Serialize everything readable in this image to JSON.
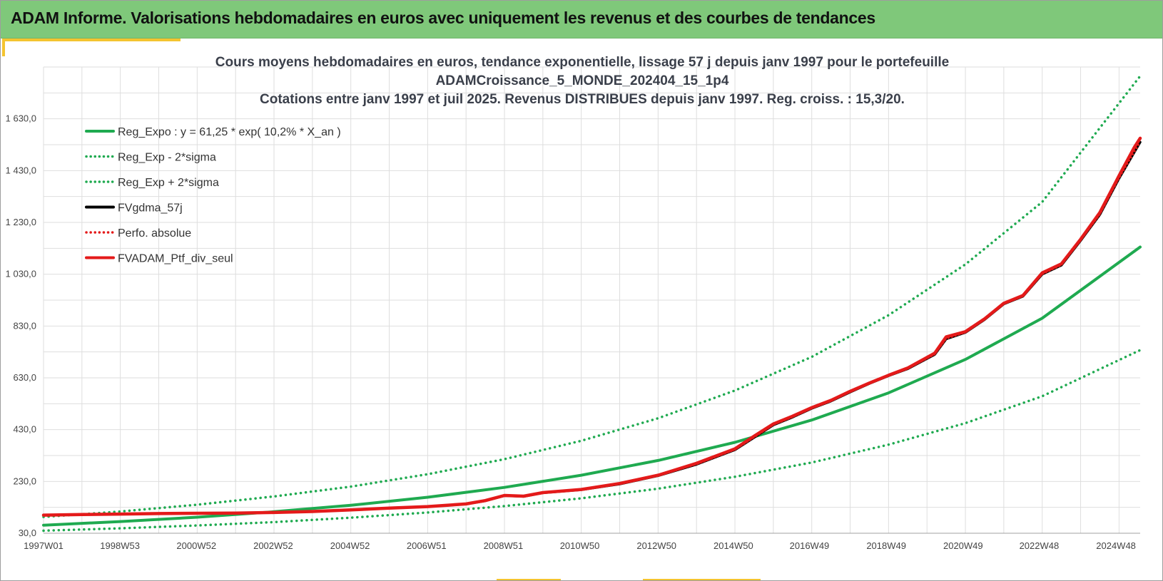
{
  "header": {
    "title": "ADAM Informe. Valorisations hebdomadaires en euros avec uniquement les revenus et des courbes de tendances"
  },
  "colors": {
    "banner": "#7fc87a",
    "accent": "#f4c430",
    "trend_green": "#1faa50",
    "black": "#000000",
    "red": "#e41a1a"
  },
  "chart_data": {
    "type": "line",
    "title_lines": [
      "Cours moyens hebdomadaires  en euros, tendance exponentielle, lissage 57 j depuis janv 1997 pour le portefeuille",
      "ADAMCroissance_5_MONDE_202404_15_1p4",
      "Cotations  entre janv 1997 et juil 2025. Revenus DISTRIBUES depuis janv 1997. Reg. croiss. : 15,3/20."
    ],
    "xlabel": "",
    "ylabel": "",
    "x_range": [
      1997.0,
      2025.55
    ],
    "ylim": [
      30,
      1830
    ],
    "y_ticks": [
      30,
      230,
      430,
      630,
      830,
      1030,
      1230,
      1430,
      1630
    ],
    "y_tick_labels": [
      "30,0",
      "230,0",
      "430,0",
      "630,0",
      "830,0",
      "1 030,0",
      "1 230,0",
      "1 430,0",
      "1 630,0"
    ],
    "x_tick_labels": [
      {
        "x": 1997.0,
        "label": "1997W01"
      },
      {
        "x": 1998.99,
        "label": "1998W53"
      },
      {
        "x": 2000.98,
        "label": "2000W52"
      },
      {
        "x": 2002.98,
        "label": "2002W52"
      },
      {
        "x": 2004.98,
        "label": "2004W52"
      },
      {
        "x": 2006.97,
        "label": "2006W51"
      },
      {
        "x": 2008.97,
        "label": "2008W51"
      },
      {
        "x": 2010.96,
        "label": "2010W50"
      },
      {
        "x": 2012.96,
        "label": "2012W50"
      },
      {
        "x": 2014.96,
        "label": "2014W50"
      },
      {
        "x": 2016.94,
        "label": "2016W49"
      },
      {
        "x": 2018.94,
        "label": "2018W49"
      },
      {
        "x": 2020.94,
        "label": "2020W49"
      },
      {
        "x": 2022.92,
        "label": "2022W48"
      },
      {
        "x": 2024.92,
        "label": "2024W48"
      }
    ],
    "grid": true,
    "legend_position": "top-left",
    "series": [
      {
        "name": "Reg_Expo : y = 61,25 * exp( 10,2% *  X_an )",
        "style": "solid",
        "color": "#1faa50",
        "x": [
          1997,
          1999,
          2001,
          2003,
          2005,
          2007,
          2009,
          2011,
          2013,
          2015,
          2017,
          2019,
          2021,
          2023,
          2025.55
        ],
        "values": [
          61,
          75,
          92,
          113,
          138,
          169,
          207,
          254,
          311,
          381,
          467,
          572,
          701,
          860,
          1135
        ]
      },
      {
        "name": "Reg_Exp - 2*sigma",
        "style": "dotted",
        "color": "#1faa50",
        "x": [
          1997,
          1999,
          2001,
          2003,
          2005,
          2007,
          2009,
          2011,
          2013,
          2015,
          2017,
          2019,
          2021,
          2023,
          2025.55
        ],
        "values": [
          40,
          49,
          60,
          73,
          90,
          110,
          135,
          165,
          202,
          248,
          303,
          372,
          455,
          559,
          737
        ]
      },
      {
        "name": "Reg_Exp + 2*sigma",
        "style": "dotted",
        "color": "#1faa50",
        "x": [
          1997,
          1999,
          2001,
          2003,
          2005,
          2007,
          2009,
          2011,
          2013,
          2015,
          2017,
          2019,
          2021,
          2023,
          2025.55
        ],
        "values": [
          93,
          114,
          140,
          172,
          210,
          258,
          316,
          387,
          474,
          581,
          711,
          872,
          1068,
          1309,
          1795
        ]
      },
      {
        "name": "FVgdma_57j",
        "style": "solid",
        "color": "#000000",
        "x": [
          1997,
          1998,
          1999,
          2000,
          2001,
          2002,
          2003,
          2004,
          2005,
          2006,
          2007,
          2008,
          2008.5,
          2009,
          2009.5,
          2010,
          2011,
          2012,
          2013,
          2014,
          2015,
          2015.5,
          2016,
          2016.5,
          2017,
          2017.5,
          2018,
          2018.5,
          2019,
          2019.5,
          2020.2,
          2020.5,
          2021,
          2021.5,
          2022,
          2022.5,
          2023,
          2023.5,
          2024,
          2024.5,
          2025,
          2025.55
        ],
        "values": [
          100,
          102,
          104,
          106,
          107,
          108,
          110,
          114,
          120,
          127,
          133,
          143,
          155,
          175,
          172,
          186,
          198,
          220,
          252,
          296,
          352,
          400,
          448,
          478,
          512,
          540,
          575,
          608,
          638,
          665,
          720,
          780,
          805,
          855,
          915,
          945,
          1030,
          1065,
          1160,
          1260,
          1400,
          1540
        ]
      },
      {
        "name": "Perfo. absolue",
        "style": "dotted",
        "color": "#e41a1a",
        "x": [
          1997,
          1998,
          1999,
          2000,
          2001,
          2002,
          2003,
          2004,
          2005,
          2006,
          2007,
          2008,
          2008.5,
          2009,
          2009.5,
          2010,
          2011,
          2012,
          2013,
          2014,
          2015,
          2015.5,
          2016,
          2016.5,
          2017,
          2017.5,
          2018,
          2018.5,
          2019,
          2019.5,
          2020.2,
          2020.5,
          2021,
          2021.5,
          2022,
          2022.5,
          2023,
          2023.5,
          2024,
          2024.5,
          2025,
          2025.55
        ],
        "values": [
          100,
          102,
          104,
          106,
          107,
          108,
          110,
          114,
          120,
          127,
          133,
          143,
          155,
          175,
          172,
          186,
          198,
          220,
          252,
          296,
          352,
          400,
          448,
          478,
          512,
          540,
          575,
          608,
          638,
          665,
          720,
          780,
          805,
          855,
          915,
          945,
          1030,
          1065,
          1160,
          1260,
          1400,
          1540
        ]
      },
      {
        "name": "FVADAM_Ptf_div_seul",
        "style": "solid",
        "color": "#e41a1a",
        "x": [
          1997,
          1998,
          1999,
          2000,
          2001,
          2002,
          2003,
          2004,
          2005,
          2006,
          2007,
          2008,
          2008.5,
          2009,
          2009.5,
          2010,
          2011,
          2012,
          2013,
          2014,
          2015,
          2015.5,
          2016,
          2016.5,
          2017,
          2017.5,
          2018,
          2018.5,
          2019,
          2019.5,
          2020.2,
          2020.5,
          2021,
          2021.5,
          2022,
          2022.5,
          2023,
          2023.5,
          2024,
          2024.5,
          2025,
          2025.4,
          2025.55
        ],
        "values": [
          100,
          102,
          104,
          106,
          107,
          108,
          110,
          114,
          120,
          127,
          133,
          143,
          156,
          176,
          173,
          187,
          199,
          222,
          254,
          300,
          356,
          405,
          452,
          482,
          515,
          543,
          578,
          610,
          640,
          668,
          725,
          788,
          808,
          858,
          918,
          948,
          1035,
          1070,
          1165,
          1268,
          1410,
          1520,
          1555
        ]
      }
    ]
  }
}
